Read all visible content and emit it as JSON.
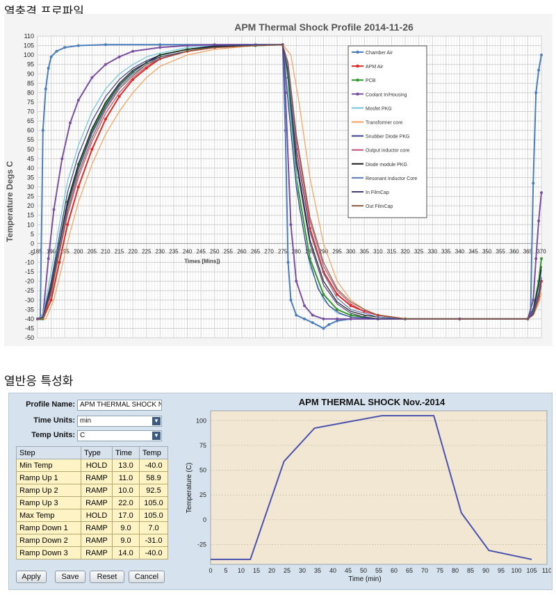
{
  "section1_title": "열충격 프로파일",
  "section2_title": "열반응 특성화",
  "chart_data": [
    {
      "type": "line",
      "title": "APM Thermal Shock Profile 2014-11-26",
      "xlabel": "Times [Mins])",
      "ylabel": "Temperature Degs C",
      "x_ticks": [
        "185",
        "190",
        "195",
        "200",
        "205",
        "210",
        "215",
        "220",
        "225",
        "230",
        "235",
        "240",
        "245",
        "250",
        "255",
        "260",
        "265",
        "270",
        "275",
        "280",
        "285",
        "290",
        "295",
        "300",
        "305",
        "310",
        "315",
        "320",
        "325",
        "330",
        "335",
        "340",
        "345",
        "350",
        "355",
        "360",
        "365",
        "370"
      ],
      "y_ticks": [
        110,
        105,
        100,
        95,
        90,
        85,
        80,
        75,
        70,
        65,
        60,
        55,
        50,
        45,
        40,
        35,
        30,
        25,
        20,
        15,
        10,
        5,
        0,
        -5,
        -10,
        -15,
        -20,
        -25,
        -30,
        -35,
        -40,
        -45,
        -50
      ],
      "xlim": [
        185,
        370
      ],
      "ylim": [
        -50,
        110
      ],
      "grid": true,
      "legend_position": "top-right",
      "series": [
        {
          "name": "Chamber Air",
          "color": "#4a7ebb",
          "marker": true,
          "x": [
            185,
            186,
            187,
            188,
            189,
            190,
            192,
            195,
            200,
            210,
            230,
            250,
            275,
            276,
            277,
            278,
            280,
            283,
            286,
            290,
            292,
            295,
            300,
            310,
            320,
            340,
            365,
            366,
            367,
            368,
            369,
            370
          ],
          "y": [
            -40,
            -40,
            60,
            82,
            93,
            99,
            102,
            104,
            105,
            105.5,
            105.5,
            105.5,
            105.5,
            60,
            -10,
            -30,
            -38,
            -40,
            -42,
            -45,
            -43,
            -41,
            -40,
            -40,
            -40,
            -40,
            -40,
            -38,
            32,
            80,
            92,
            100
          ]
        },
        {
          "name": "APM Air",
          "color": "#e0281e",
          "marker": true,
          "x": [
            185,
            187,
            190,
            193,
            196,
            200,
            205,
            210,
            215,
            220,
            225,
            230,
            240,
            250,
            265,
            275,
            277,
            280,
            285,
            290,
            295,
            300,
            305,
            310,
            320,
            340,
            365,
            367,
            369,
            370
          ],
          "y": [
            -40,
            -40,
            -30,
            -10,
            10,
            30,
            50,
            66,
            78,
            87,
            93,
            98,
            102,
            104,
            105,
            105.5,
            90,
            50,
            8,
            -15,
            -27,
            -33,
            -36,
            -38,
            -40,
            -40,
            -40,
            -37,
            -28,
            -20
          ]
        },
        {
          "name": "PCB",
          "color": "#2e9a2e",
          "marker": true,
          "x": [
            185,
            187,
            190,
            193,
            196,
            200,
            205,
            210,
            215,
            220,
            225,
            230,
            240,
            250,
            265,
            275,
            277,
            280,
            285,
            290,
            295,
            300,
            305,
            310,
            320,
            340,
            365,
            367,
            369,
            370
          ],
          "y": [
            -40,
            -40,
            -22,
            0,
            22,
            42,
            60,
            74,
            84,
            91,
            96,
            100,
            103,
            104.5,
            105,
            105.5,
            88,
            35,
            -8,
            -27,
            -35,
            -38,
            -39,
            -40,
            -40,
            -40,
            -40,
            -35,
            -20,
            -8
          ]
        },
        {
          "name": "Coolant In/Housing",
          "color": "#7a4ea0",
          "marker": true,
          "x": [
            185,
            187,
            189,
            191,
            194,
            197,
            200,
            205,
            210,
            215,
            220,
            230,
            240,
            250,
            265,
            275,
            276,
            278,
            280,
            283,
            286,
            290,
            295,
            300,
            310,
            340,
            365,
            367,
            368,
            369,
            370
          ],
          "y": [
            -40,
            -38,
            -8,
            18,
            45,
            64,
            76,
            88,
            95,
            99,
            102,
            104,
            105,
            105.5,
            105.5,
            105.5,
            80,
            10,
            -20,
            -33,
            -38,
            -40,
            -40,
            -40,
            -40,
            -40,
            -40,
            -30,
            -8,
            12,
            27
          ]
        },
        {
          "name": "Mosfet PKG",
          "color": "#6ec4d8",
          "marker": false,
          "x": [
            185,
            187,
            190,
            193,
            196,
            200,
            205,
            210,
            215,
            220,
            225,
            230,
            240,
            250,
            265,
            275,
            278,
            281,
            285,
            290,
            295,
            300,
            310,
            340,
            365,
            367,
            369,
            370
          ],
          "y": [
            -40,
            -38,
            -15,
            10,
            33,
            52,
            70,
            82,
            90,
            95,
            99,
            101,
            104,
            105,
            105.5,
            105.5,
            65,
            20,
            -12,
            -30,
            -37,
            -39,
            -40,
            -40,
            -40,
            -36,
            -25,
            -17
          ]
        },
        {
          "name": "Transformer core",
          "color": "#f5a05a",
          "marker": false,
          "x": [
            185,
            188,
            191,
            194,
            197,
            200,
            205,
            210,
            215,
            220,
            225,
            230,
            240,
            250,
            265,
            275,
            278,
            281,
            285,
            290,
            295,
            300,
            305,
            310,
            320,
            340,
            365,
            367,
            369,
            370
          ],
          "y": [
            -40,
            -40,
            -30,
            -12,
            6,
            22,
            42,
            58,
            70,
            80,
            88,
            94,
            100,
            103,
            105,
            105.5,
            100,
            75,
            35,
            0,
            -20,
            -30,
            -35,
            -38,
            -40,
            -40,
            -40,
            -38,
            -32,
            -26
          ]
        },
        {
          "name": "Snubber Diode PKG",
          "color": "#3c3c8c",
          "marker": false,
          "x": [
            185,
            187,
            190,
            193,
            196,
            200,
            205,
            210,
            215,
            220,
            225,
            230,
            240,
            250,
            265,
            275,
            277,
            280,
            284,
            288,
            292,
            296,
            300,
            310,
            340,
            365,
            367,
            369,
            370
          ],
          "y": [
            -40,
            -39,
            -20,
            4,
            27,
            47,
            65,
            78,
            87,
            93,
            97,
            100,
            103,
            105,
            105.5,
            105.5,
            75,
            30,
            -5,
            -24,
            -33,
            -37,
            -39,
            -40,
            -40,
            -40,
            -35,
            -22,
            -14
          ]
        },
        {
          "name": "Output inductor core",
          "color": "#c0507a",
          "marker": false,
          "x": [
            185,
            187,
            190,
            193,
            196,
            200,
            205,
            210,
            215,
            220,
            225,
            230,
            240,
            250,
            265,
            275,
            277,
            280,
            285,
            290,
            295,
            300,
            305,
            310,
            320,
            340,
            365,
            367,
            369,
            370
          ],
          "y": [
            -40,
            -40,
            -27,
            -5,
            15,
            35,
            54,
            69,
            80,
            88,
            94,
            98,
            102,
            104,
            105,
            105.5,
            95,
            55,
            12,
            -12,
            -25,
            -32,
            -36,
            -38,
            -40,
            -40,
            -40,
            -37,
            -29,
            -22
          ]
        },
        {
          "name": "Diode module PKG",
          "color": "#1a1a1a",
          "marker": false,
          "x": [
            185,
            187,
            190,
            193,
            196,
            200,
            205,
            210,
            215,
            220,
            225,
            230,
            240,
            250,
            265,
            275,
            277,
            280,
            285,
            290,
            295,
            300,
            305,
            310,
            320,
            340,
            365,
            367,
            369,
            370
          ],
          "y": [
            -40,
            -39,
            -23,
            0,
            22,
            42,
            61,
            75,
            85,
            92,
            96,
            100,
            103,
            104.5,
            105,
            105.5,
            92,
            45,
            2,
            -20,
            -31,
            -36,
            -38,
            -39,
            -40,
            -40,
            -40,
            -36,
            -22,
            -12
          ]
        },
        {
          "name": "Resonant Inductor Core",
          "color": "#5a7ab8",
          "marker": false,
          "x": [
            185,
            187,
            190,
            193,
            196,
            200,
            205,
            210,
            215,
            220,
            225,
            230,
            240,
            250,
            265,
            275,
            277,
            280,
            285,
            290,
            295,
            300,
            305,
            310,
            320,
            340,
            365,
            367,
            369,
            370
          ],
          "y": [
            -40,
            -40,
            -25,
            -2,
            19,
            39,
            58,
            72,
            83,
            90,
            95,
            99,
            102,
            104,
            105,
            105.5,
            93,
            50,
            6,
            -16,
            -29,
            -35,
            -37,
            -39,
            -40,
            -40,
            -40,
            -36,
            -26,
            -18
          ]
        },
        {
          "name": "In FilmCap",
          "color": "#4a3870",
          "marker": false,
          "x": [
            185,
            187,
            190,
            193,
            196,
            200,
            205,
            210,
            215,
            220,
            225,
            230,
            240,
            250,
            265,
            275,
            277,
            280,
            285,
            290,
            295,
            300,
            305,
            310,
            320,
            340,
            365,
            367,
            369,
            370
          ],
          "y": [
            -40,
            -39,
            -24,
            0,
            20,
            40,
            59,
            73,
            84,
            91,
            96,
            99,
            102,
            104,
            105,
            105.5,
            90,
            42,
            0,
            -22,
            -32,
            -37,
            -39,
            -40,
            -40,
            -40,
            -40,
            -37,
            -27,
            -18
          ]
        },
        {
          "name": "Out FilmCap",
          "color": "#8a5a3a",
          "marker": false,
          "x": [
            185,
            187,
            190,
            193,
            196,
            200,
            205,
            210,
            215,
            220,
            225,
            230,
            240,
            250,
            265,
            275,
            277,
            280,
            285,
            290,
            295,
            300,
            305,
            310,
            320,
            340,
            365,
            367,
            369,
            370
          ],
          "y": [
            -40,
            -40,
            -26,
            -4,
            17,
            37,
            56,
            71,
            82,
            89,
            95,
            98,
            102,
            104,
            105,
            105.5,
            96,
            58,
            14,
            -10,
            -24,
            -31,
            -35,
            -38,
            -40,
            -40,
            -40,
            -38,
            -30,
            -22
          ]
        }
      ]
    },
    {
      "type": "line",
      "title": "APM THERMAL SHOCK Nov.-2014",
      "xlabel": "Time (min)",
      "ylabel": "Temperature (C)",
      "xlim": [
        0,
        110
      ],
      "ylim": [
        -45,
        110
      ],
      "x_ticks": [
        0,
        5,
        10,
        15,
        20,
        25,
        30,
        35,
        40,
        45,
        50,
        55,
        60,
        65,
        70,
        75,
        80,
        85,
        90,
        95,
        100,
        105,
        110
      ],
      "y_ticks": [
        100,
        75,
        50,
        25,
        0,
        -25
      ],
      "background": "#f1e7d3",
      "series": [
        {
          "color": "#4a52b0",
          "x": [
            0,
            13,
            24,
            34,
            56,
            73,
            82,
            91,
            105
          ],
          "y": [
            -40,
            -40,
            58.9,
            92.5,
            105,
            105,
            7,
            -31,
            -40
          ]
        }
      ]
    }
  ],
  "panel": {
    "profile_name_label": "Profile Name:",
    "profile_name_value": "APM THERMAL SHOCK Nov.",
    "time_units_label": "Time Units:",
    "time_units_value": "min",
    "temp_units_label": "Temp Units:",
    "temp_units_value": "C",
    "dropdown_glyph": "▼",
    "table": {
      "headers": [
        "Step",
        "Type",
        "Time",
        "Temp"
      ],
      "rows": [
        [
          "Min Temp",
          "HOLD",
          "13.0",
          "-40.0"
        ],
        [
          "Ramp Up 1",
          "RAMP",
          "11.0",
          "58.9"
        ],
        [
          "Ramp Up 2",
          "RAMP",
          "10.0",
          "92.5"
        ],
        [
          "Ramp Up 3",
          "RAMP",
          "22.0",
          "105.0"
        ],
        [
          "Max Temp",
          "HOLD",
          "17.0",
          "105.0"
        ],
        [
          "Ramp Down 1",
          "RAMP",
          "9.0",
          "7.0"
        ],
        [
          "Ramp Down 2",
          "RAMP",
          "9.0",
          "-31.0"
        ],
        [
          "Ramp Down 3",
          "RAMP",
          "14.0",
          "-40.0"
        ]
      ]
    },
    "buttons": {
      "apply": "Apply",
      "save": "Save",
      "reset": "Reset",
      "cancel": "Cancel"
    }
  }
}
